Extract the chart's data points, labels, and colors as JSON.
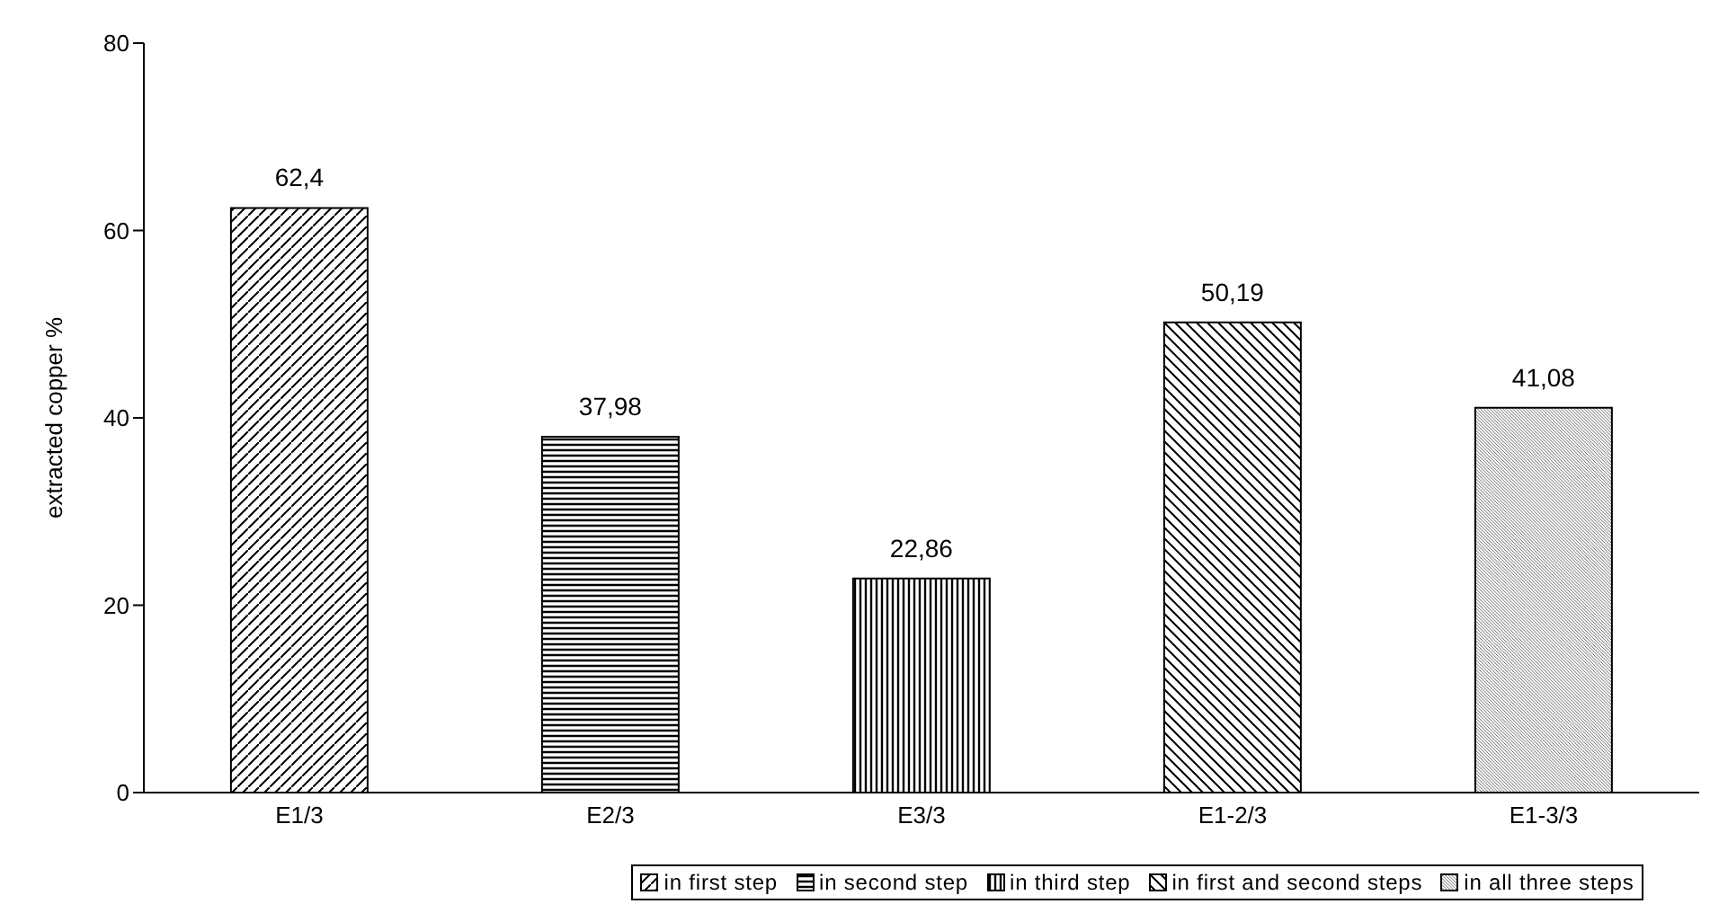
{
  "chart_data": {
    "type": "bar",
    "categories": [
      "E1/3",
      "E2/3",
      "E3/3",
      "E1-2/3",
      "E1-3/3"
    ],
    "ylabel": "extracted copper %",
    "ylim": [
      0,
      80
    ],
    "yticks": [
      0,
      20,
      40,
      60,
      80
    ],
    "grid": false,
    "legend": "bottom",
    "stacked": true,
    "series": [
      {
        "name": "in first step",
        "color": "#000000",
        "values": [
          62.4,
          null,
          null,
          null,
          null
        ],
        "value_labels": [
          "62,4",
          null,
          null,
          null,
          null
        ]
      },
      {
        "name": "in second step",
        "color": "#000000",
        "values": [
          null,
          37.98,
          null,
          null,
          null
        ],
        "value_labels": [
          null,
          "37,98",
          null,
          null,
          null
        ]
      },
      {
        "name": "in third step",
        "color": "#000000",
        "values": [
          null,
          null,
          22.86,
          null,
          null
        ],
        "value_labels": [
          null,
          null,
          "22,86",
          null,
          null
        ]
      },
      {
        "name": "in first and second steps",
        "color": "#000000",
        "values": [
          null,
          null,
          null,
          50.19,
          null
        ],
        "value_labels": [
          null,
          null,
          null,
          "50,19",
          null
        ]
      },
      {
        "name": "in all three steps",
        "color": "#000000",
        "values": [
          null,
          null,
          null,
          null,
          41.08
        ],
        "value_labels": [
          null,
          null,
          null,
          null,
          "41,08"
        ]
      }
    ]
  }
}
